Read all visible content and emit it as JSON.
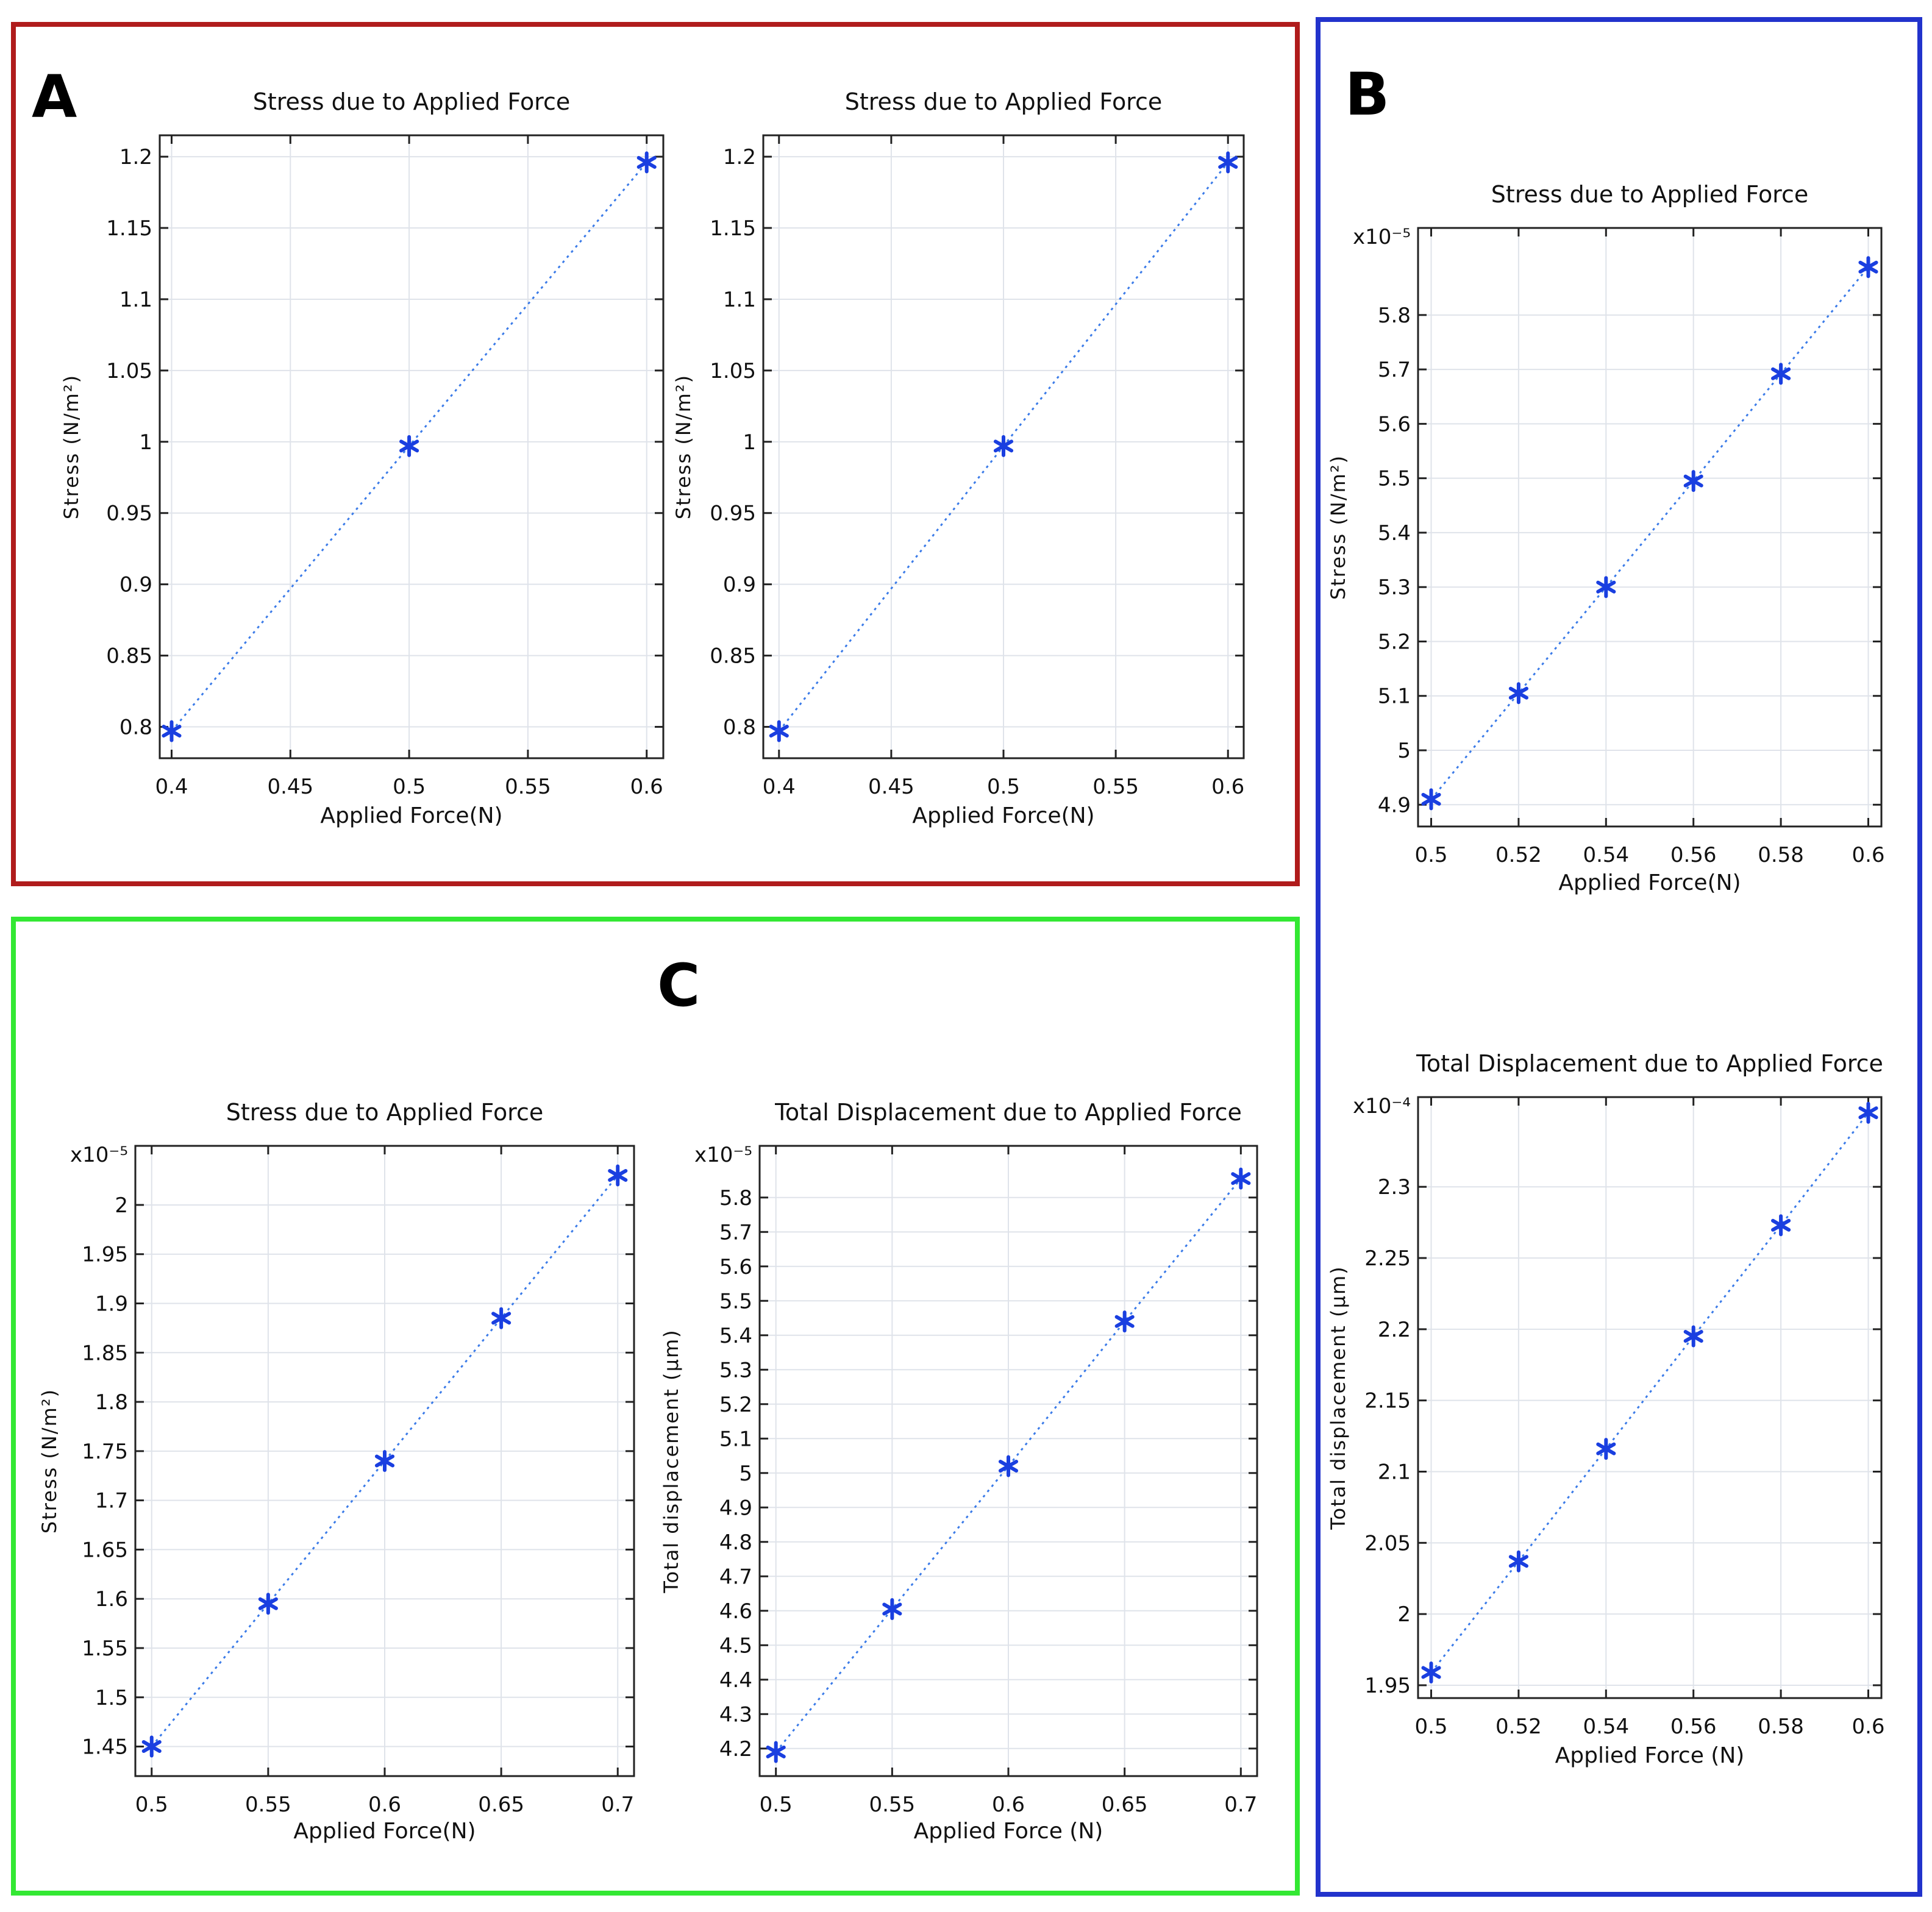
{
  "panels": [
    {
      "label": "A",
      "color": "#b01c1c"
    },
    {
      "label": "B",
      "color": "#2233cc"
    },
    {
      "label": "C",
      "color": "#33e833"
    }
  ],
  "chart_data": [
    {
      "id": "A1",
      "panel": "A",
      "type": "line",
      "title": "Stress due to Applied Force",
      "xlabel": "Applied Force(N)",
      "ylabel": "Stress (N/m²)",
      "exponent_label": "",
      "xlim": [
        0.395,
        0.607
      ],
      "ylim": [
        0.778,
        1.215
      ],
      "xticks": [
        "0.4",
        "0.45",
        "0.5",
        "0.55",
        "0.6"
      ],
      "yticks": [
        "0.8",
        "0.85",
        "0.9",
        "0.95",
        "1",
        "1.05",
        "1.1",
        "1.15",
        "1.2"
      ],
      "x": [
        0.4,
        0.5,
        0.6
      ],
      "y": [
        0.797,
        0.997,
        1.196
      ],
      "series_color": "#3b7be8",
      "marker_color": "#1a3fe0"
    },
    {
      "id": "A2",
      "panel": "A",
      "type": "line",
      "title": "Stress due to Applied Force",
      "xlabel": "Applied Force(N)",
      "ylabel": "Stress (N/m²)",
      "exponent_label": "",
      "xlim": [
        0.393,
        0.607
      ],
      "ylim": [
        0.778,
        1.215
      ],
      "xticks": [
        "0.4",
        "0.45",
        "0.5",
        "0.55",
        "0.6"
      ],
      "yticks": [
        "0.8",
        "0.85",
        "0.9",
        "0.95",
        "1",
        "1.05",
        "1.1",
        "1.15",
        "1.2"
      ],
      "x": [
        0.4,
        0.5,
        0.6
      ],
      "y": [
        0.797,
        0.997,
        1.196
      ],
      "series_color": "#3b7be8",
      "marker_color": "#1a3fe0"
    },
    {
      "id": "B1",
      "panel": "B",
      "type": "line",
      "title": "Stress due to Applied Force",
      "xlabel": "Applied Force(N)",
      "ylabel": "Stress (N/m²)",
      "exponent_label": "x10⁻⁵",
      "xlim": [
        0.497,
        0.603
      ],
      "ylim": [
        4.86,
        5.96
      ],
      "xticks": [
        "0.5",
        "0.52",
        "0.54",
        "0.56",
        "0.58",
        "0.6"
      ],
      "yticks": [
        "4.9",
        "5",
        "5.1",
        "5.2",
        "5.3",
        "5.4",
        "5.5",
        "5.6",
        "5.7",
        "5.8"
      ],
      "x": [
        0.5,
        0.52,
        0.54,
        0.56,
        0.58,
        0.6
      ],
      "y": [
        4.91,
        5.105,
        5.3,
        5.495,
        5.692,
        5.888
      ],
      "series_color": "#3b7be8",
      "marker_color": "#1a3fe0"
    },
    {
      "id": "B2",
      "panel": "B",
      "type": "line",
      "title": "Total Displacement due to Applied Force",
      "xlabel": "Applied Force (N)",
      "ylabel": "Total displacement (μm)",
      "exponent_label": "x10⁻⁴",
      "xlim": [
        0.497,
        0.603
      ],
      "ylim": [
        1.941,
        2.363
      ],
      "xticks": [
        "0.5",
        "0.52",
        "0.54",
        "0.56",
        "0.58",
        "0.6"
      ],
      "yticks": [
        "1.95",
        "2",
        "2.05",
        "2.1",
        "2.15",
        "2.2",
        "2.25",
        "2.3"
      ],
      "x": [
        0.5,
        0.52,
        0.54,
        0.56,
        0.58,
        0.6
      ],
      "y": [
        1.959,
        2.037,
        2.116,
        2.195,
        2.273,
        2.352
      ],
      "series_color": "#3b7be8",
      "marker_color": "#1a3fe0"
    },
    {
      "id": "C1",
      "panel": "C",
      "type": "line",
      "title": "Stress due to Applied Force",
      "xlabel": "Applied Force(N)",
      "ylabel": "Stress (N/m²)",
      "exponent_label": "x10⁻⁵",
      "xlim": [
        0.493,
        0.707
      ],
      "ylim": [
        1.42,
        2.06
      ],
      "xticks": [
        "0.5",
        "0.55",
        "0.6",
        "0.65",
        "0.7"
      ],
      "yticks": [
        "1.45",
        "1.5",
        "1.55",
        "1.6",
        "1.65",
        "1.7",
        "1.75",
        "1.8",
        "1.85",
        "1.9",
        "1.95",
        "2"
      ],
      "x": [
        0.5,
        0.55,
        0.6,
        0.65,
        0.7
      ],
      "y": [
        1.45,
        1.595,
        1.74,
        1.885,
        2.03
      ],
      "series_color": "#3b7be8",
      "marker_color": "#1a3fe0"
    },
    {
      "id": "C2",
      "panel": "C",
      "type": "line",
      "title": "Total Displacement due to Applied Force",
      "xlabel": "Applied Force (N)",
      "ylabel": "Total displacement (μm)",
      "exponent_label": "x10⁻⁵",
      "xlim": [
        0.493,
        0.707
      ],
      "ylim": [
        4.12,
        5.95
      ],
      "xticks": [
        "0.5",
        "0.55",
        "0.6",
        "0.65",
        "0.7"
      ],
      "yticks": [
        "4.2",
        "4.3",
        "4.4",
        "4.5",
        "4.6",
        "4.7",
        "4.8",
        "4.9",
        "5",
        "5.1",
        "5.2",
        "5.3",
        "5.4",
        "5.5",
        "5.6",
        "5.7",
        "5.8"
      ],
      "x": [
        0.5,
        0.55,
        0.6,
        0.65,
        0.7
      ],
      "y": [
        4.19,
        4.605,
        5.02,
        5.44,
        5.855
      ],
      "series_color": "#3b7be8",
      "marker_color": "#1a3fe0"
    }
  ]
}
